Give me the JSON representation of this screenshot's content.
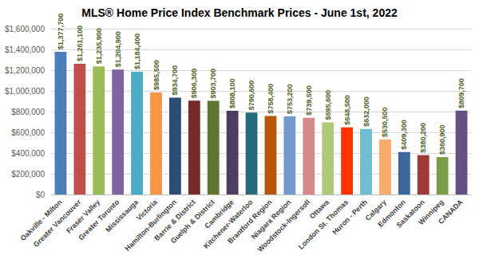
{
  "chart_data": {
    "type": "bar",
    "title": "MLS® Home Price Index Benchmark Prices - June 1st, 2022",
    "categories": [
      "Oakville - Milton",
      "Greater Vancouver",
      "Fraser Valley",
      "Greater Toronto",
      "Mississauga",
      "Victoria",
      "Hamilton-Burlington",
      "Barrie & District",
      "Guelph & District",
      "Cambridge",
      "Kitchener-Waterloo",
      "Brantford Region",
      "Niagara Region",
      "Woodstock-Ingersoll",
      "Ottawa",
      "London St. Thomas",
      "Huron - Perth",
      "Calgary",
      "Edmonton",
      "Saskatoon",
      "Winnipeg",
      "CANADA"
    ],
    "values": [
      1377700,
      1261100,
      1235900,
      1204900,
      1184400,
      985500,
      934700,
      906300,
      903700,
      808100,
      790600,
      758400,
      753200,
      739500,
      695600,
      648500,
      632000,
      530500,
      409300,
      380200,
      360900,
      809700
    ],
    "value_labels": [
      "$1,377,700",
      "$1,261,100",
      "$1,235,900",
      "$1,204,900",
      "$1,184,400",
      "$985,500",
      "$934,700",
      "$906,300",
      "$903,700",
      "$808,100",
      "$790,600",
      "$758,400",
      "$753,200",
      "$739,500",
      "$695,600",
      "$648,500",
      "$632,000",
      "$530,500",
      "$409,300",
      "$380,200",
      "$360,900",
      "$809,700"
    ],
    "colors": [
      "#4a7ebb",
      "#c0504d",
      "#9bbb59",
      "#8064a2",
      "#4bacc6",
      "#f79646",
      "#2c4d75",
      "#772c2a",
      "#5f7530",
      "#4d3b62",
      "#276a7c",
      "#b65708",
      "#729aca",
      "#d48a88",
      "#afc97a",
      "#ff3300",
      "#6fbdd1",
      "#f9ab6b",
      "#3a679c",
      "#9c3b38",
      "#7d9c47",
      "#664f82"
    ],
    "ylim": [
      0,
      1600000
    ],
    "yticks": [
      {
        "value": 0,
        "label": "$0"
      },
      {
        "value": 200000,
        "label": "$200,000"
      },
      {
        "value": 400000,
        "label": "$400,000"
      },
      {
        "value": 600000,
        "label": "$600,000"
      },
      {
        "value": 800000,
        "label": "$800,000"
      },
      {
        "value": 1000000,
        "label": "$1,000,000"
      },
      {
        "value": 1200000,
        "label": "$1,200,000"
      },
      {
        "value": 1400000,
        "label": "$1,400,000"
      },
      {
        "value": 1600000,
        "label": "$1,600,000"
      }
    ],
    "grid": true,
    "data_labels": true
  }
}
